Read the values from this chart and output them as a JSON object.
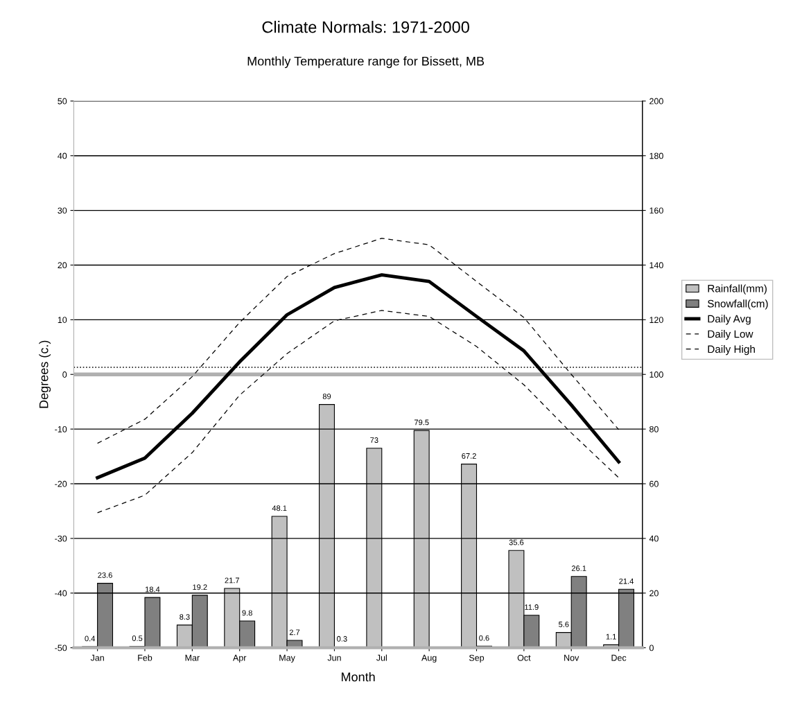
{
  "chart_data": {
    "type": "bar",
    "title": "Climate Normals: 1971-2000",
    "subtitle": "Monthly Temperature range for Bissett, MB",
    "xlabel": "Month",
    "ylabel": "Degrees (c.)",
    "categories": [
      "Jan",
      "Feb",
      "Mar",
      "Apr",
      "May",
      "Jun",
      "Jul",
      "Aug",
      "Sep",
      "Oct",
      "Nov",
      "Dec"
    ],
    "series": [
      {
        "name": "Rainfall(mm)",
        "axis": "y2",
        "color": "#c0c0c0",
        "values": [
          0.4,
          0.5,
          8.3,
          21.7,
          48.1,
          89,
          73,
          79.5,
          67.2,
          35.6,
          5.6,
          1.1
        ],
        "value_labels": [
          "0.4",
          "0.5",
          "8.3",
          "21.7",
          "48.1",
          "89",
          "73",
          "79.5",
          "67.2",
          "35.6",
          "5.6",
          "1.1"
        ]
      },
      {
        "name": "Snowfall(cm)",
        "axis": "y2",
        "color": "#808080",
        "values": [
          23.6,
          18.4,
          19.2,
          9.8,
          2.7,
          0.3,
          null,
          null,
          0.6,
          11.9,
          26.1,
          21.4
        ],
        "value_labels": [
          "23.6",
          "18.4",
          "19.2",
          "9.8",
          "2.7",
          "0.3",
          null,
          null,
          "0.6",
          "11.9",
          "26.1",
          "21.4"
        ]
      },
      {
        "name": "Daily Avg",
        "type": "line",
        "color": "#000000",
        "line_style": "solid",
        "values": [
          -18.9,
          -15.3,
          -7.1,
          2.3,
          10.9,
          15.9,
          18.2,
          17.0,
          10.6,
          4.3,
          -5.6,
          -16.0
        ]
      },
      {
        "name": "Daily Low",
        "type": "line",
        "color": "#000000",
        "line_style": "dashed",
        "values": [
          -25.3,
          -22.1,
          -14.3,
          -3.8,
          3.8,
          9.8,
          11.7,
          10.6,
          5.1,
          -1.9,
          -10.7,
          -18.9
        ]
      },
      {
        "name": "Daily High",
        "type": "line",
        "color": "#000000",
        "line_style": "dashed",
        "values": [
          -12.6,
          -8.2,
          -0.4,
          9.5,
          17.9,
          22.1,
          24.9,
          23.7,
          17.0,
          10.4,
          0.0,
          -10.1
        ]
      }
    ],
    "ylim": [
      -50,
      50
    ],
    "yticks": [
      -50,
      -40,
      -30,
      -20,
      -10,
      0,
      10,
      20,
      30,
      40,
      50
    ],
    "y2lim": [
      0,
      200
    ],
    "y2ticks": [
      0,
      20,
      40,
      60,
      80,
      100,
      120,
      140,
      160,
      180,
      200
    ],
    "ref_lines": [
      {
        "axis": "y",
        "value": 0,
        "color": "#b0b0b0"
      },
      {
        "axis": "y",
        "value": 1.3,
        "color": "#000000",
        "line_style": "dotted"
      }
    ],
    "grid": "y",
    "legend": "right"
  }
}
